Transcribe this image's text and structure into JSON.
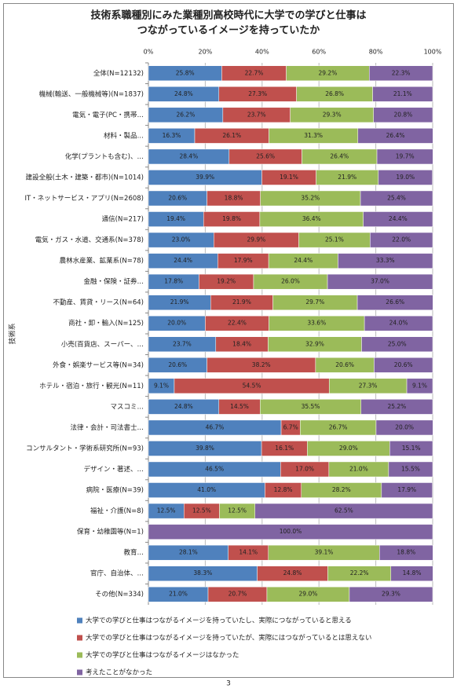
{
  "chart_data": {
    "type": "stacked-bar-horizontal",
    "title": [
      "技術系職種別にみた業種別高校時代に大学での学びと仕事は",
      "つながっているイメージを持っていたか"
    ],
    "y_axis_label": "技術系",
    "page_number": "3",
    "xlim": [
      0,
      100
    ],
    "xticks": [
      {
        "value": 0,
        "label": "0%"
      },
      {
        "value": 20,
        "label": "20%"
      },
      {
        "value": 40,
        "label": "40%"
      },
      {
        "value": 60,
        "label": "60%"
      },
      {
        "value": 80,
        "label": "80%"
      },
      {
        "value": 100,
        "label": "100%"
      }
    ],
    "grid": true,
    "legend": "bottom",
    "categories": [
      "全体(N=12132)",
      "機械(輸送、一般機械等)(N=1837)",
      "電気・電子(PC・携帯…",
      "材料・製品…",
      "化学(プラントも含む)、…",
      "建設全般(土木・建築・都市)(N=1014)",
      "IT・ネットサービス・アプリ(N=2608)",
      "通信(N=217)",
      "電気・ガス・水道、交通系(N=378)",
      "農林水産業、鉱業系(N=78)",
      "金融・保険・証券…",
      "不動産、賃貸・リース(N=64)",
      "商社・卸・輸入(N=125)",
      "小売(百貨店、スーパー、…",
      "外食・娯楽サービス等(N=34)",
      "ホテル・宿泊・旅行・観光(N=11)",
      "マスコミ…",
      "法律・会計・司法書士…",
      "コンサルタント・学術系研究所(N=93)",
      "デザイン・著述、…",
      "病院・医療(N=39)",
      "福祉・介護(N=8)",
      "保育・幼稚園等(N=1)",
      "教育…",
      "官庁、自治体、…",
      "その他(N=334)"
    ],
    "series": [
      {
        "name": "大学での学びと仕事はつながるイメージを持っていたし、実際につながっていると思える",
        "color": "#4f81bd",
        "values": [
          25.8,
          24.8,
          26.2,
          16.3,
          28.4,
          39.9,
          20.6,
          19.4,
          23.0,
          24.4,
          17.8,
          21.9,
          20.0,
          23.7,
          20.6,
          9.1,
          24.8,
          46.7,
          39.8,
          46.5,
          41.0,
          12.5,
          0,
          28.1,
          38.3,
          21.0
        ],
        "value_labels": [
          "25.8%",
          "24.8%",
          "26.2%",
          "16.3%",
          "28.4%",
          "39.9%",
          "20.6%",
          "19.4%",
          "23.0%",
          "24.4%",
          "17.8%",
          "21.9%",
          "20.0%",
          "23.7%",
          "20.6%",
          "9.1%",
          "24.8%",
          "46.7%",
          "39.8%",
          "46.5%",
          "41.0%",
          "12.5%",
          null,
          "28.1%",
          "38.3%",
          "21.0%"
        ]
      },
      {
        "name": "大学での学びと仕事はつながるイメージを持っていたが、実際にはつながっているとは思えない",
        "color": "#c0504d",
        "values": [
          22.7,
          27.3,
          23.7,
          26.1,
          25.6,
          19.1,
          18.8,
          19.8,
          29.9,
          17.9,
          19.2,
          21.9,
          22.4,
          18.4,
          38.2,
          54.5,
          14.5,
          6.7,
          16.1,
          17.0,
          12.8,
          12.5,
          0,
          14.1,
          24.8,
          20.7
        ],
        "value_labels": [
          "22.7%",
          "27.3%",
          "23.7%",
          "26.1%",
          "25.6%",
          "19.1%",
          "18.8%",
          "19.8%",
          "29.9%",
          "17.9%",
          "19.2%",
          "21.9%",
          "22.4%",
          "18.4%",
          "38.2%",
          "54.5%",
          "14.5%",
          "6.7%",
          "16.1%",
          "17.0%",
          "12.8%",
          "12.5%",
          null,
          "14.1%",
          "24.8%",
          "20.7%"
        ]
      },
      {
        "name": "大学での学びと仕事はつながるイメージはなかった",
        "color": "#9bbb59",
        "values": [
          29.2,
          26.8,
          29.3,
          31.3,
          26.4,
          21.9,
          35.2,
          36.4,
          25.1,
          24.4,
          26.0,
          29.7,
          33.6,
          32.9,
          20.6,
          27.3,
          35.5,
          26.7,
          29.0,
          21.0,
          28.2,
          12.5,
          0,
          39.1,
          22.2,
          29.0
        ],
        "value_labels": [
          "29.2%",
          "26.8%",
          "29.3%",
          "31.3%",
          "26.4%",
          "21.9%",
          "35.2%",
          "36.4%",
          "25.1%",
          "24.4%",
          "26.0%",
          "29.7%",
          "33.6%",
          "32.9%",
          "20.6%",
          "27.3%",
          "35.5%",
          "26.7%",
          "29.0%",
          "21.0%",
          "28.2%",
          "12.5%",
          null,
          "39.1%",
          "22.2%",
          "29.0%"
        ]
      },
      {
        "name": "考えたことがなかった",
        "color": "#8064a2",
        "values": [
          22.3,
          21.1,
          20.8,
          26.4,
          19.7,
          19.0,
          25.4,
          24.4,
          22.0,
          33.3,
          37.0,
          26.6,
          24.0,
          25.0,
          20.6,
          9.1,
          25.2,
          20.0,
          15.1,
          15.5,
          17.9,
          62.5,
          100.0,
          18.8,
          14.8,
          29.3
        ],
        "value_labels": [
          "22.3%",
          "21.1%",
          "20.8%",
          "26.4%",
          "19.7%",
          "19.0%",
          "25.4%",
          "24.4%",
          "22.0%",
          "33.3%",
          "37.0%",
          "26.6%",
          "24.0%",
          "25.0%",
          "20.6%",
          "9.1%",
          "25.2%",
          "20.0%",
          "15.1%",
          "15.5%",
          "17.9%",
          "62.5%",
          "100.0%",
          "18.8%",
          "14.8%",
          "29.3%"
        ]
      }
    ]
  }
}
